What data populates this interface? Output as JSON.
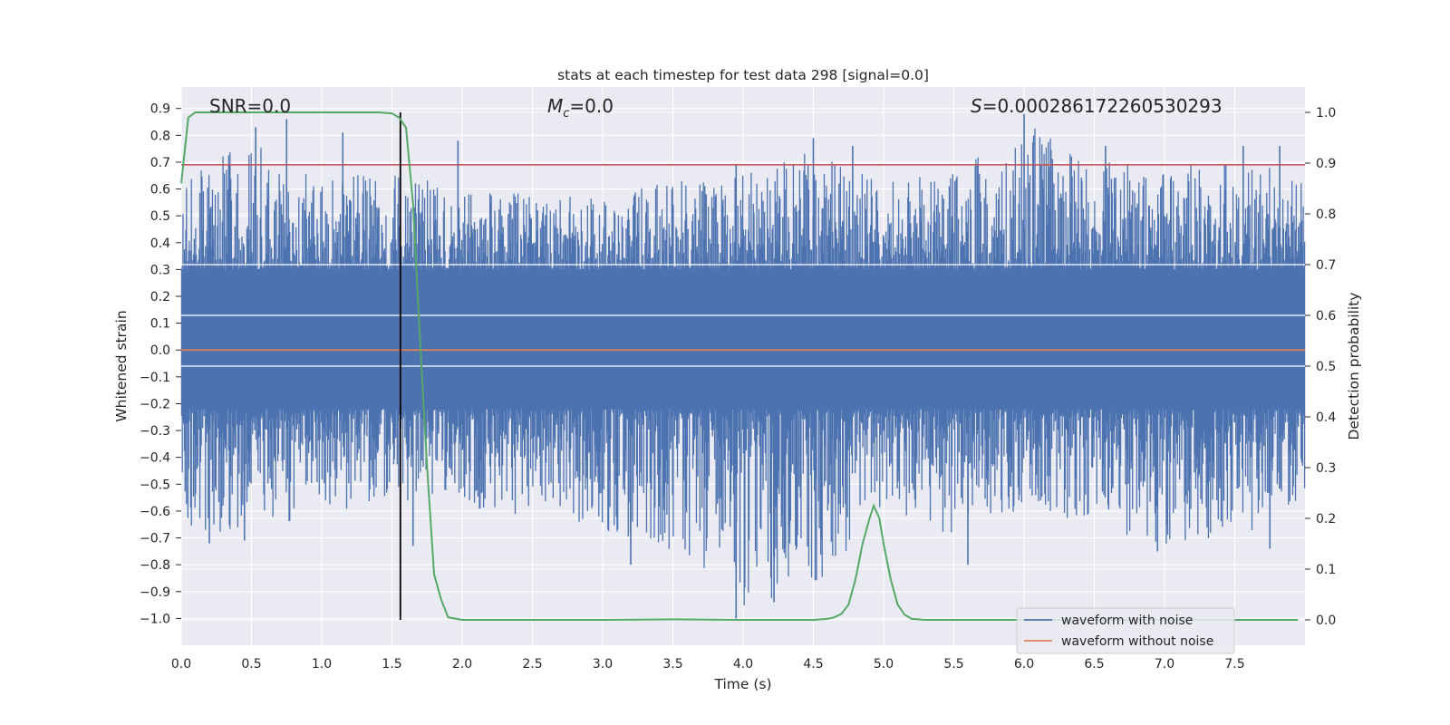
{
  "chart_data": {
    "type": "line",
    "title": "stats at each timestep for test data 298 [signal=0.0]",
    "xlabel": "Time (s)",
    "ylabel": "Whitened strain",
    "y2label": "Detection probability",
    "xlim": [
      0.0,
      8.0
    ],
    "ylim": [
      -1.1,
      0.98
    ],
    "y2lim": [
      -0.05,
      1.05
    ],
    "xticks": [
      "0.0",
      "0.5",
      "1.0",
      "1.5",
      "2.0",
      "2.5",
      "3.0",
      "3.5",
      "4.0",
      "4.5",
      "5.0",
      "5.5",
      "6.0",
      "6.5",
      "7.0",
      "7.5"
    ],
    "yticks": [
      "0.9",
      "0.8",
      "0.7",
      "0.6",
      "0.5",
      "0.4",
      "0.3",
      "0.2",
      "0.1",
      "0.0",
      "−0.1",
      "−0.2",
      "−0.3",
      "−0.4",
      "−0.5",
      "−0.6",
      "−0.7",
      "−0.8",
      "−0.9",
      "−1.0"
    ],
    "y2ticks": [
      "1.0",
      "0.9",
      "0.8",
      "0.7",
      "0.6",
      "0.5",
      "0.4",
      "0.3",
      "0.2",
      "0.1",
      "0.0"
    ],
    "grid": true,
    "annotations": {
      "snr": "SNR=0.0",
      "mc_symbol": "M",
      "mc_sub": "c",
      "mc_value": "=0.0",
      "s_symbol": "S",
      "s_value": "=0.000286172260530293"
    },
    "threshold": 0.69,
    "vline_x": 1.56,
    "noise_envelope": {
      "description_values": "max/min strain per time bin (approx.)",
      "x": [
        0.0,
        0.5,
        1.0,
        1.5,
        2.0,
        2.5,
        3.0,
        3.5,
        4.0,
        4.5,
        5.0,
        5.5,
        6.0,
        6.5,
        7.0,
        7.5,
        8.0
      ],
      "upper": [
        0.65,
        0.83,
        0.65,
        0.7,
        0.6,
        0.6,
        0.58,
        0.65,
        0.69,
        0.78,
        0.65,
        0.68,
        0.88,
        0.72,
        0.72,
        0.76,
        0.66
      ],
      "lower": [
        -0.72,
        -0.7,
        -0.63,
        -0.58,
        -0.6,
        -0.65,
        -0.7,
        -0.8,
        -1.0,
        -0.94,
        -0.6,
        -0.72,
        -0.62,
        -0.7,
        -0.75,
        -0.74,
        -0.6
      ]
    },
    "spikes": [
      {
        "x": 0.53,
        "y": 0.83
      },
      {
        "x": 0.75,
        "y": 0.86
      },
      {
        "x": 1.15,
        "y": 0.81
      },
      {
        "x": 1.97,
        "y": 0.78
      },
      {
        "x": 3.95,
        "y": 0.69
      },
      {
        "x": 4.5,
        "y": 0.79
      },
      {
        "x": 4.78,
        "y": 0.76
      },
      {
        "x": 6.0,
        "y": 0.88
      },
      {
        "x": 6.58,
        "y": 0.76
      },
      {
        "x": 7.56,
        "y": 0.76
      },
      {
        "x": 7.82,
        "y": 0.76
      },
      {
        "x": 0.2,
        "y": -0.72
      },
      {
        "x": 0.45,
        "y": -0.71
      },
      {
        "x": 1.65,
        "y": -0.73
      },
      {
        "x": 3.2,
        "y": -0.8
      },
      {
        "x": 3.95,
        "y": -1.0
      },
      {
        "x": 4.22,
        "y": -0.94
      },
      {
        "x": 5.6,
        "y": -0.8
      },
      {
        "x": 6.95,
        "y": -0.75
      },
      {
        "x": 7.75,
        "y": -0.74
      }
    ],
    "series": [
      {
        "name": "waveform with noise",
        "color": "#4c72b0"
      },
      {
        "name": "waveform without noise",
        "color": "#dd8452",
        "x": [
          0.0,
          8.0
        ],
        "y": [
          0.0,
          0.0
        ]
      },
      {
        "name": "detection probability",
        "color": "#55a868",
        "x": [
          0.0,
          0.05,
          0.1,
          0.2,
          0.4,
          0.8,
          1.0,
          1.2,
          1.4,
          1.5,
          1.55,
          1.6,
          1.65,
          1.7,
          1.75,
          1.8,
          1.85,
          1.9,
          2.0,
          2.5,
          3.0,
          3.5,
          4.0,
          4.5,
          4.6,
          4.65,
          4.7,
          4.75,
          4.8,
          4.85,
          4.9,
          4.93,
          4.97,
          5.0,
          5.05,
          5.1,
          5.15,
          5.2,
          5.3,
          6.0,
          7.0,
          7.95
        ],
        "y": [
          0.86,
          0.99,
          1.0,
          1.0,
          1.0,
          1.0,
          1.0,
          1.0,
          1.0,
          0.998,
          0.99,
          0.97,
          0.82,
          0.55,
          0.3,
          0.09,
          0.04,
          0.005,
          0.0,
          0.0,
          0.0,
          0.001,
          0.0,
          0.0,
          0.002,
          0.005,
          0.012,
          0.03,
          0.08,
          0.15,
          0.2,
          0.225,
          0.2,
          0.15,
          0.08,
          0.03,
          0.01,
          0.002,
          0.0,
          0.0,
          0.0,
          0.0
        ]
      }
    ],
    "legend": {
      "position": "lower-right",
      "entries": [
        {
          "label": "waveform with noise",
          "color": "#4c72b0"
        },
        {
          "label": "waveform without noise",
          "color": "#dd8452"
        }
      ]
    },
    "colors": {
      "background": "#eaeaf2",
      "grid": "#ffffff",
      "threshold": "#c44e52",
      "vline": "#000000",
      "text": "#262626"
    }
  }
}
